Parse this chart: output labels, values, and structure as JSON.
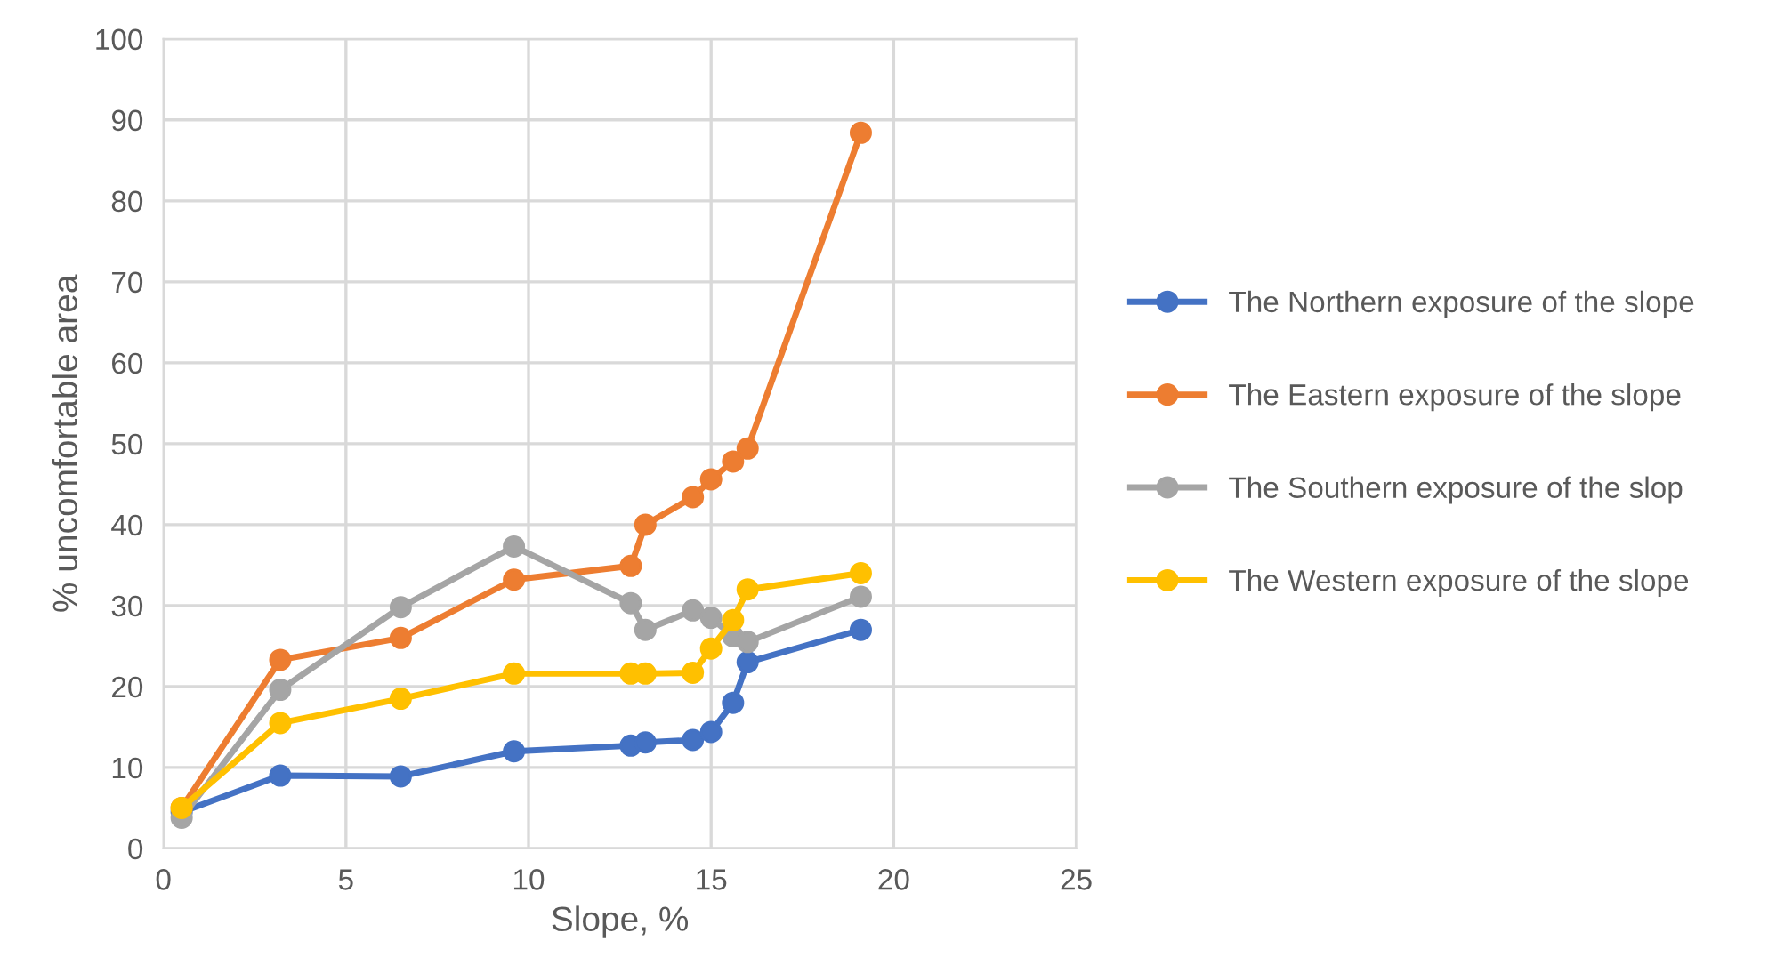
{
  "chart_data": {
    "type": "line",
    "xlabel": "Slope, %",
    "ylabel": "% uncomfortable area",
    "x": [
      0.5,
      3.2,
      6.5,
      9.6,
      12.8,
      13.2,
      14.5,
      15.0,
      15.6,
      16.0,
      19.1
    ],
    "series": [
      {
        "name": "The Northern exposure of the slope",
        "color": "#4472c4",
        "values": [
          4.5,
          9,
          8.9,
          12,
          12.7,
          13.1,
          13.4,
          14.4,
          18,
          23,
          27
        ]
      },
      {
        "name": "The Eastern exposure of the slope",
        "color": "#ed7d31",
        "values": [
          5,
          23.3,
          26,
          33.2,
          34.9,
          40,
          43.4,
          45.6,
          47.8,
          49.4,
          88.4
        ]
      },
      {
        "name": "The Southern exposure of the slop",
        "color": "#a5a5a5",
        "values": [
          3.8,
          19.6,
          29.8,
          37.3,
          30.3,
          27,
          29.4,
          28.5,
          26.2,
          25.5,
          31.1
        ]
      },
      {
        "name": "The Western exposure of the slope",
        "color": "#ffc000",
        "values": [
          5,
          15.5,
          18.5,
          21.6,
          21.6,
          21.6,
          21.7,
          24.7,
          28.2,
          32,
          34
        ]
      }
    ],
    "xlim": [
      0,
      25
    ],
    "xticks": [
      0,
      5,
      10,
      15,
      20,
      25
    ],
    "ylim": [
      0,
      100
    ],
    "yticks": [
      0,
      10,
      20,
      30,
      40,
      50,
      60,
      70,
      80,
      90,
      100
    ],
    "grid": true,
    "legend": "right",
    "marker": "circle",
    "line_style": "solid"
  }
}
